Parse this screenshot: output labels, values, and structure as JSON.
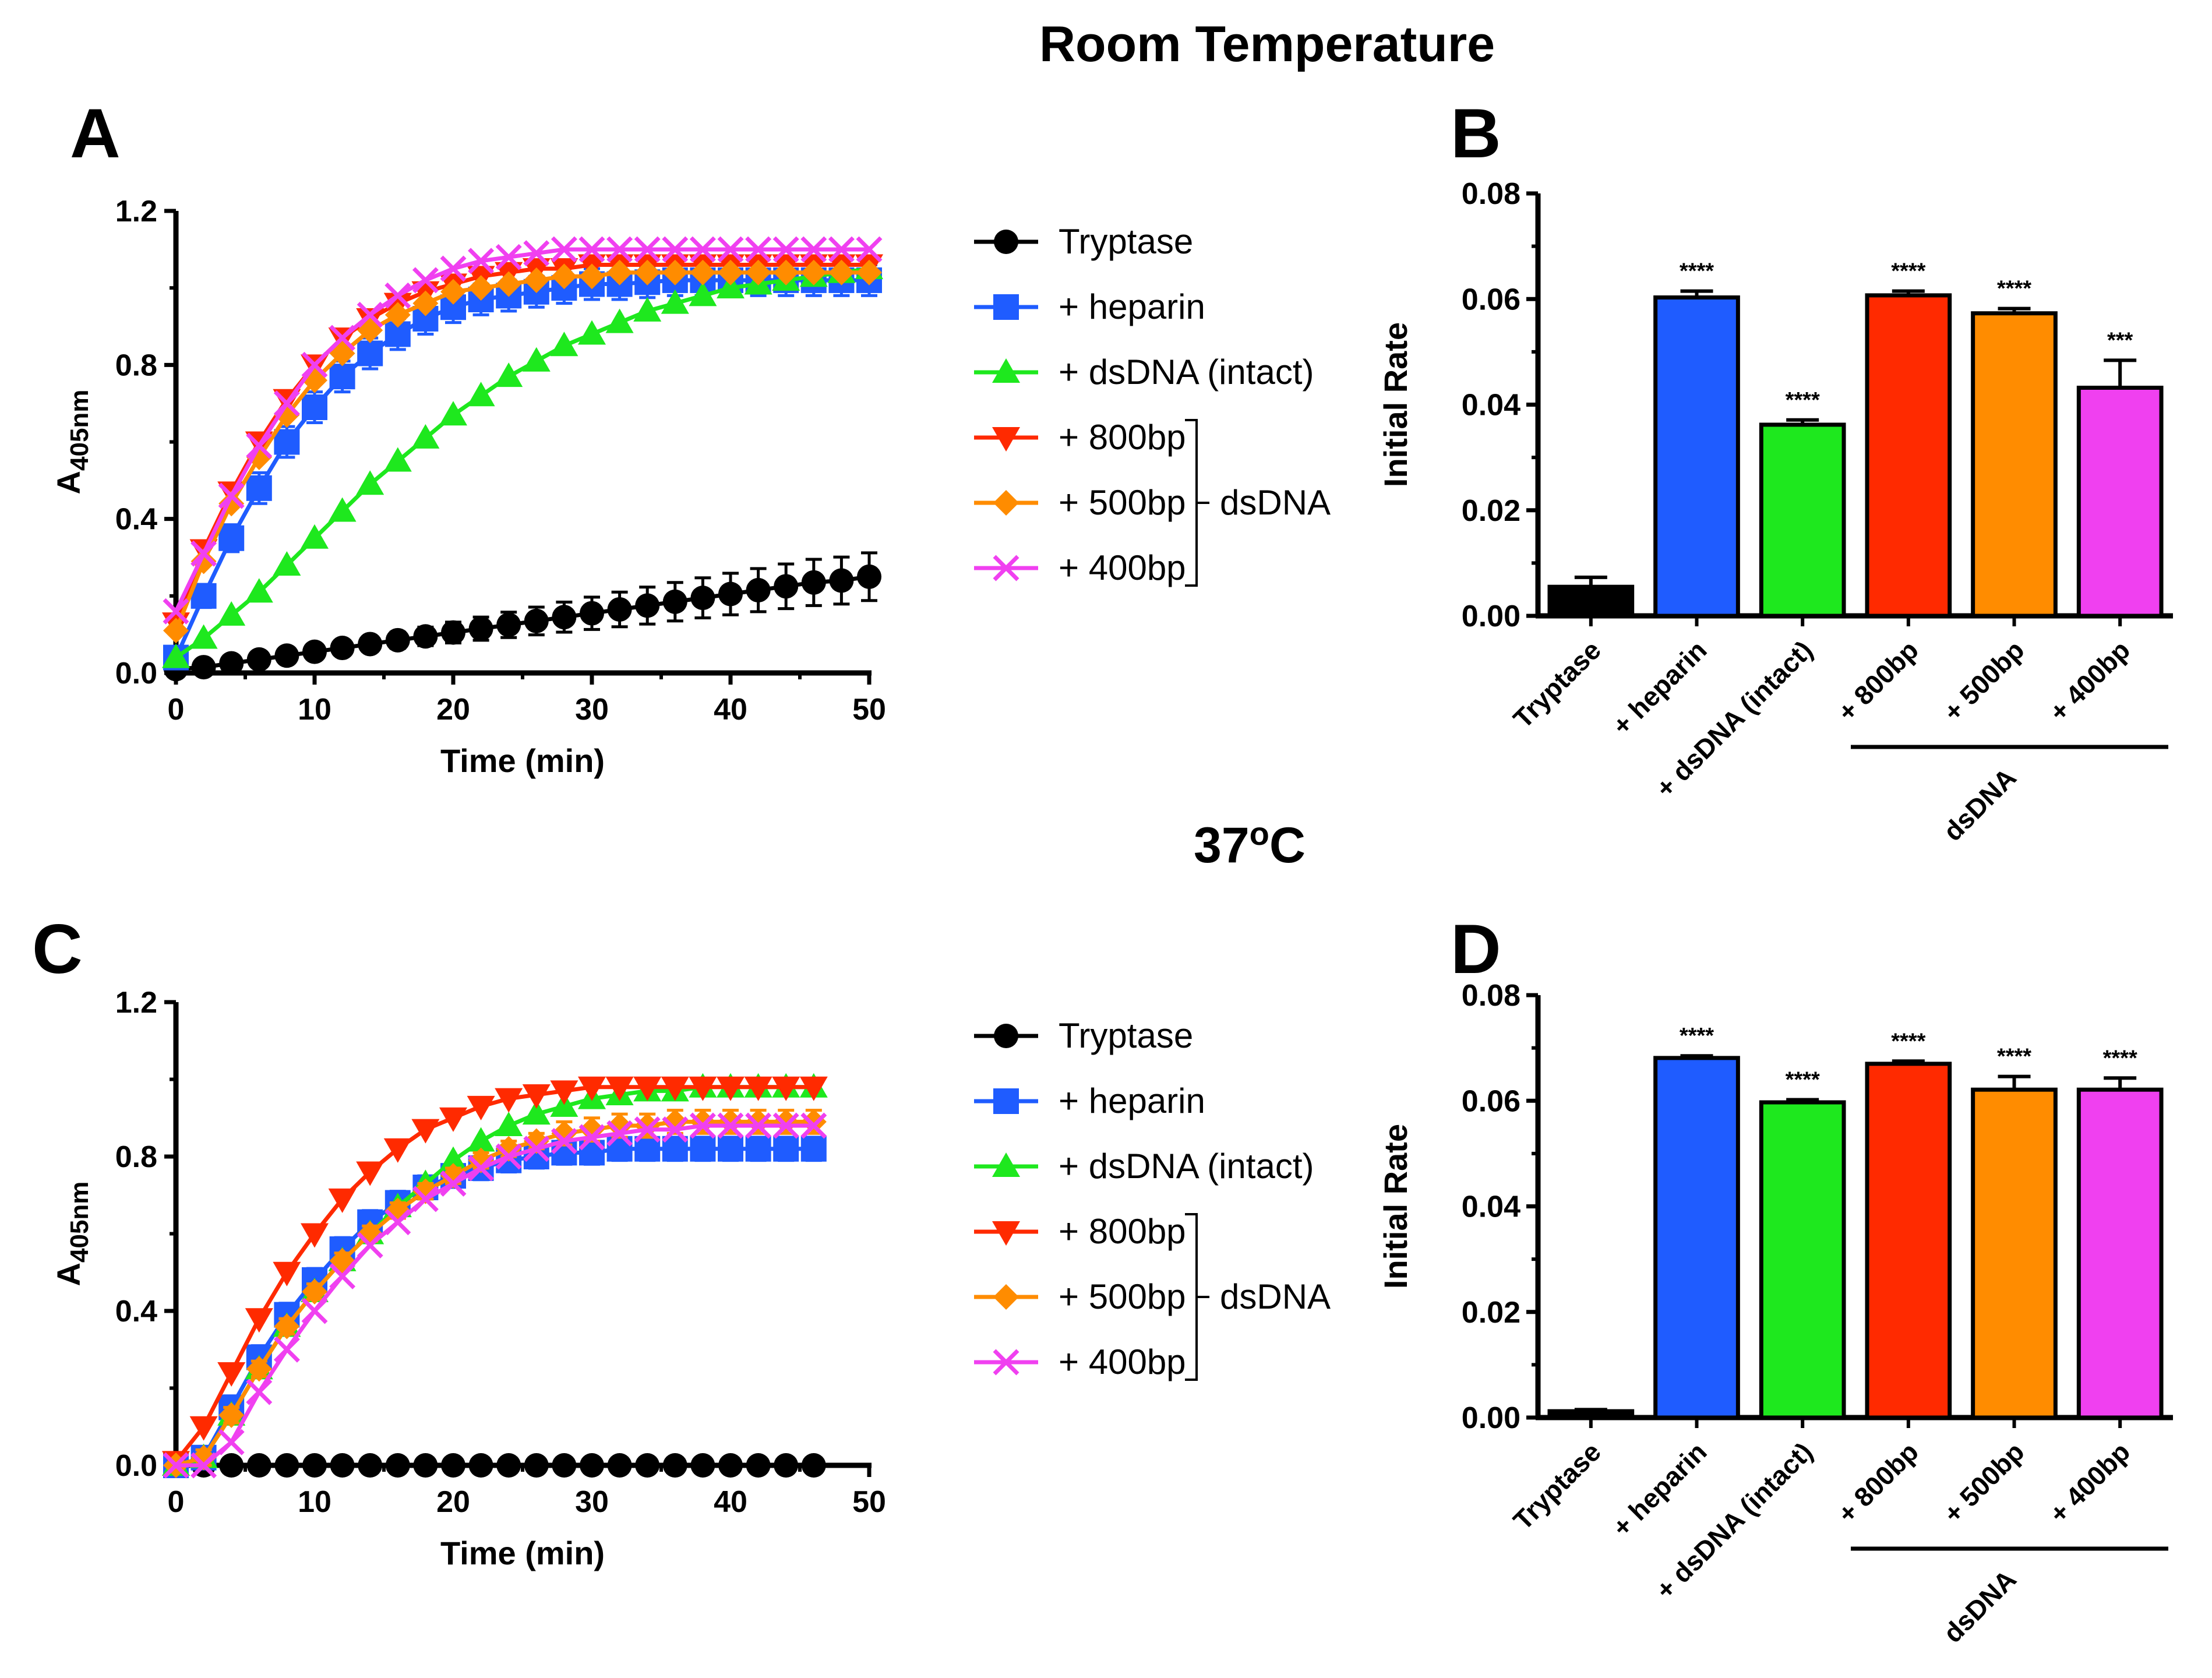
{
  "figure": {
    "title_room_temperature": "Room Temperature",
    "title_37c_main": "37",
    "title_37c_sup": "o",
    "title_37c_unit": "C"
  },
  "colors": {
    "tryptase": "#000000",
    "heparin": "#1f5cff",
    "dsdna_intact": "#1ee81e",
    "bp800": "#ff2a00",
    "bp500": "#ff8c00",
    "bp400": "#f040f0"
  },
  "legend": {
    "entries": [
      {
        "key": "tryptase",
        "label": "Tryptase",
        "marker": "circle"
      },
      {
        "key": "heparin",
        "label": "+ heparin",
        "marker": "square"
      },
      {
        "key": "dsdna_intact",
        "label": "+ dsDNA (intact)",
        "marker": "triangle-up"
      },
      {
        "key": "bp800",
        "label": "+ 800bp",
        "marker": "triangle-down"
      },
      {
        "key": "bp500",
        "label": "+ 500bp",
        "marker": "diamond"
      },
      {
        "key": "bp400",
        "label": "+ 400bp",
        "marker": "x"
      }
    ],
    "group_label": "dsDNA"
  },
  "chart_data": [
    {
      "panel": "A",
      "type": "line",
      "xlabel": "Time (min)",
      "ylabel_main": "A",
      "ylabel_sub": "405nm",
      "xlim": [
        0,
        50
      ],
      "ylim": [
        0,
        1.2
      ],
      "xticks": [
        "0",
        "10",
        "20",
        "30",
        "40",
        "50"
      ],
      "yticks": [
        "0.0",
        "0.4",
        "0.8",
        "1.2"
      ],
      "x": [
        0,
        2,
        4,
        6,
        8,
        10,
        12,
        14,
        16,
        18,
        20,
        22,
        24,
        26,
        28,
        30,
        32,
        34,
        36,
        38,
        40,
        42,
        44,
        46,
        48,
        50
      ],
      "series": [
        {
          "key": "tryptase",
          "name": "Tryptase",
          "values": [
            0.01,
            0.015,
            0.025,
            0.035,
            0.045,
            0.055,
            0.065,
            0.075,
            0.085,
            0.095,
            0.105,
            0.115,
            0.125,
            0.135,
            0.145,
            0.155,
            0.165,
            0.175,
            0.185,
            0.195,
            0.205,
            0.215,
            0.225,
            0.235,
            0.24,
            0.25
          ],
          "error": [
            0,
            0.004,
            0.006,
            0.008,
            0.01,
            0.012,
            0.015,
            0.018,
            0.021,
            0.024,
            0.027,
            0.03,
            0.033,
            0.036,
            0.039,
            0.042,
            0.045,
            0.048,
            0.05,
            0.052,
            0.054,
            0.056,
            0.058,
            0.06,
            0.061,
            0.062
          ]
        },
        {
          "key": "heparin",
          "name": "+ heparin",
          "values": [
            0.04,
            0.2,
            0.35,
            0.48,
            0.6,
            0.69,
            0.77,
            0.83,
            0.88,
            0.92,
            0.95,
            0.97,
            0.98,
            0.99,
            1.0,
            1.01,
            1.01,
            1.015,
            1.02,
            1.02,
            1.02,
            1.02,
            1.02,
            1.02,
            1.02,
            1.02
          ],
          "error": [
            0.01,
            0.03,
            0.035,
            0.04,
            0.04,
            0.04,
            0.04,
            0.04,
            0.04,
            0.04,
            0.04,
            0.04,
            0.04,
            0.04,
            0.04,
            0.04,
            0.04,
            0.04,
            0.04,
            0.04,
            0.04,
            0.04,
            0.04,
            0.04,
            0.04,
            0.04
          ]
        },
        {
          "key": "dsdna_intact",
          "name": "+ dsDNA (intact)",
          "values": [
            0.04,
            0.09,
            0.15,
            0.21,
            0.28,
            0.35,
            0.42,
            0.49,
            0.55,
            0.61,
            0.67,
            0.72,
            0.77,
            0.81,
            0.85,
            0.88,
            0.91,
            0.94,
            0.96,
            0.98,
            1.0,
            1.01,
            1.02,
            1.03,
            1.04,
            1.05
          ]
        },
        {
          "key": "bp800",
          "name": "+ 800bp",
          "values": [
            0.13,
            0.32,
            0.47,
            0.6,
            0.71,
            0.8,
            0.87,
            0.92,
            0.96,
            0.99,
            1.01,
            1.03,
            1.04,
            1.05,
            1.05,
            1.06,
            1.06,
            1.06,
            1.06,
            1.06,
            1.06,
            1.06,
            1.06,
            1.06,
            1.06,
            1.06
          ]
        },
        {
          "key": "bp500",
          "name": "+ 500bp",
          "values": [
            0.11,
            0.29,
            0.44,
            0.56,
            0.67,
            0.76,
            0.83,
            0.89,
            0.93,
            0.96,
            0.99,
            1.0,
            1.01,
            1.02,
            1.03,
            1.03,
            1.04,
            1.04,
            1.04,
            1.04,
            1.04,
            1.04,
            1.04,
            1.04,
            1.04,
            1.04
          ]
        },
        {
          "key": "bp400",
          "name": "+ 400bp",
          "values": [
            0.16,
            0.31,
            0.46,
            0.59,
            0.7,
            0.8,
            0.87,
            0.93,
            0.98,
            1.02,
            1.05,
            1.07,
            1.08,
            1.09,
            1.1,
            1.1,
            1.1,
            1.1,
            1.1,
            1.1,
            1.1,
            1.1,
            1.1,
            1.1,
            1.1,
            1.1
          ]
        }
      ]
    },
    {
      "panel": "B",
      "type": "bar",
      "ylabel": "Initial Rate",
      "ylim": [
        0,
        0.08
      ],
      "yticks": [
        "0.00",
        "0.02",
        "0.04",
        "0.06",
        "0.08"
      ],
      "categories": [
        "Tryptase",
        "+ heparin",
        "+ dsDNA (intact)",
        "+ 800bp",
        "+ 500bp",
        "+ 400bp"
      ],
      "keys": [
        "tryptase",
        "heparin",
        "dsdna_intact",
        "bp800",
        "bp500",
        "bp400"
      ],
      "values": [
        0.0055,
        0.0603,
        0.0362,
        0.0607,
        0.0573,
        0.0432
      ],
      "error": [
        0.0018,
        0.0012,
        0.0009,
        0.0008,
        0.0009,
        0.0052
      ],
      "significance": [
        "",
        "****",
        "****",
        "****",
        "****",
        "***"
      ],
      "group_label": "dsDNA"
    },
    {
      "panel": "C",
      "type": "line",
      "xlabel": "Time (min)",
      "ylabel_main": "A",
      "ylabel_sub": "405nm",
      "xlim": [
        0,
        50
      ],
      "ylim": [
        0,
        1.2
      ],
      "xticks": [
        "0",
        "10",
        "20",
        "30",
        "40",
        "50"
      ],
      "yticks": [
        "0.0",
        "0.4",
        "0.8",
        "1.2"
      ],
      "x": [
        0,
        2,
        4,
        6,
        8,
        10,
        12,
        14,
        16,
        18,
        20,
        22,
        24,
        26,
        28,
        30,
        32,
        34,
        36,
        38,
        40,
        42,
        44,
        46
      ],
      "series": [
        {
          "key": "tryptase",
          "name": "Tryptase",
          "values": [
            0.0,
            0.0,
            0.0,
            0.0,
            0.0,
            0.0,
            0.0,
            0.0,
            0.0,
            0.0,
            0.0,
            0.0,
            0.0,
            0.0,
            0.0,
            0.0,
            0.0,
            0.0,
            0.0,
            0.0,
            0.0,
            0.0,
            0.0,
            0.0
          ]
        },
        {
          "key": "heparin",
          "name": "+ heparin",
          "values": [
            0.0,
            0.02,
            0.15,
            0.28,
            0.39,
            0.48,
            0.56,
            0.63,
            0.68,
            0.72,
            0.75,
            0.77,
            0.79,
            0.8,
            0.81,
            0.81,
            0.82,
            0.82,
            0.82,
            0.82,
            0.82,
            0.82,
            0.82,
            0.82
          ],
          "error": [
            0.01,
            0.02,
            0.03,
            0.03,
            0.03,
            0.03,
            0.03,
            0.03,
            0.03,
            0.03,
            0.03,
            0.03,
            0.03,
            0.03,
            0.03,
            0.03,
            0.03,
            0.03,
            0.03,
            0.03,
            0.03,
            0.03,
            0.03,
            0.03
          ]
        },
        {
          "key": "dsdna_intact",
          "name": "+ dsDNA (intact)",
          "values": [
            0.0,
            0.02,
            0.13,
            0.25,
            0.36,
            0.45,
            0.53,
            0.6,
            0.67,
            0.73,
            0.79,
            0.84,
            0.88,
            0.91,
            0.93,
            0.95,
            0.96,
            0.97,
            0.97,
            0.98,
            0.98,
            0.98,
            0.98,
            0.98
          ]
        },
        {
          "key": "bp800",
          "name": "+ 800bp",
          "values": [
            0.01,
            0.1,
            0.24,
            0.38,
            0.5,
            0.6,
            0.69,
            0.76,
            0.82,
            0.87,
            0.9,
            0.93,
            0.95,
            0.96,
            0.97,
            0.98,
            0.98,
            0.98,
            0.98,
            0.98,
            0.98,
            0.98,
            0.98,
            0.98
          ]
        },
        {
          "key": "bp500",
          "name": "+ 500bp",
          "values": [
            0.0,
            0.02,
            0.13,
            0.25,
            0.36,
            0.45,
            0.53,
            0.6,
            0.66,
            0.71,
            0.75,
            0.79,
            0.82,
            0.84,
            0.86,
            0.87,
            0.88,
            0.88,
            0.89,
            0.89,
            0.89,
            0.89,
            0.89,
            0.89
          ],
          "error": [
            0.01,
            0.02,
            0.02,
            0.02,
            0.02,
            0.02,
            0.02,
            0.02,
            0.02,
            0.02,
            0.02,
            0.02,
            0.02,
            0.02,
            0.03,
            0.03,
            0.03,
            0.03,
            0.03,
            0.03,
            0.03,
            0.03,
            0.03,
            0.03
          ]
        },
        {
          "key": "bp400",
          "name": "+ 400bp",
          "values": [
            0.0,
            0.0,
            0.06,
            0.19,
            0.3,
            0.4,
            0.49,
            0.57,
            0.63,
            0.69,
            0.73,
            0.77,
            0.8,
            0.82,
            0.84,
            0.85,
            0.86,
            0.87,
            0.87,
            0.88,
            0.88,
            0.88,
            0.88,
            0.88
          ]
        }
      ]
    },
    {
      "panel": "D",
      "type": "bar",
      "ylabel": "Initial Rate",
      "ylim": [
        0,
        0.08
      ],
      "yticks": [
        "0.00",
        "0.02",
        "0.04",
        "0.06",
        "0.08"
      ],
      "categories": [
        "Tryptase",
        "+ heparin",
        "+ dsDNA (intact)",
        "+ 800bp",
        "+ 500bp",
        "+ 400bp"
      ],
      "keys": [
        "tryptase",
        "heparin",
        "dsdna_intact",
        "bp800",
        "bp500",
        "bp400"
      ],
      "values": [
        0.0012,
        0.0681,
        0.0597,
        0.067,
        0.0621,
        0.0621
      ],
      "error": [
        0.0003,
        0.0004,
        0.0005,
        0.0005,
        0.0025,
        0.0022
      ],
      "significance": [
        "",
        "****",
        "****",
        "****",
        "****",
        "****"
      ],
      "group_label": "dsDNA"
    }
  ]
}
